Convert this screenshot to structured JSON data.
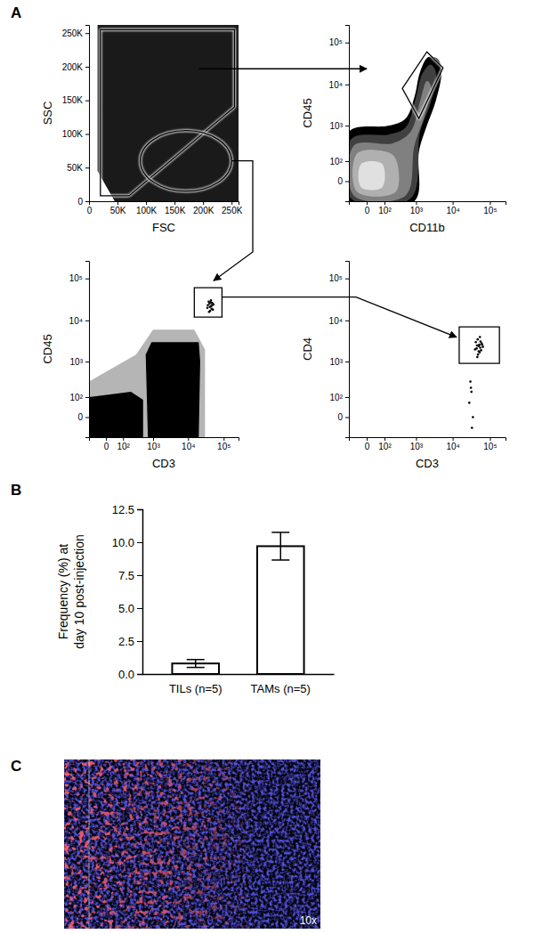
{
  "panel_labels": [
    "A",
    "B",
    "C"
  ],
  "chart_data": [
    {
      "type": "scatter",
      "x_label": "FSC",
      "y_label": "SSC",
      "xlim": [
        0,
        262144
      ],
      "ylim": [
        0,
        262144
      ],
      "xticks": [
        0,
        {
          "value": 50000,
          "label": "50K"
        },
        {
          "value": 100000,
          "label": "100K"
        },
        {
          "value": 150000,
          "label": "150K"
        },
        {
          "value": 200000,
          "label": "200K"
        },
        {
          "value": 250000,
          "label": "250K"
        }
      ],
      "yticks": [
        0,
        {
          "value": 50000,
          "label": "50K"
        },
        {
          "value": 100000,
          "label": "100K"
        },
        {
          "value": 150000,
          "label": "150K"
        },
        {
          "value": 200000,
          "label": "200K"
        },
        {
          "value": 250000,
          "label": "250K"
        }
      ],
      "regions": [
        {
          "color": "#1a1a1a",
          "x": [
            15000,
            262144,
            262144,
            45000,
            15000
          ],
          "y": [
            262144,
            262144,
            0,
            0,
            45000
          ]
        }
      ],
      "gates": [
        {
          "x": [
            20000,
            255000,
            255000,
            70000,
            20000
          ],
          "y": [
            255000,
            255000,
            140000,
            8000,
            8000
          ]
        }
      ],
      "ellipse_gates": [
        {
          "center_x": 170000,
          "center_y": 60000,
          "radius_x": 80000,
          "radius_y": 45000
        }
      ]
    },
    {
      "type": "contour",
      "x_label": "CD11b",
      "y_label": "CD45",
      "log": true,
      "xlim": [
        -100,
        262144
      ],
      "ylim": [
        -100,
        262144
      ],
      "xticks": [
        0,
        {
          "value": 100,
          "label": "10²"
        },
        {
          "value": 1000,
          "label": "10³"
        },
        {
          "value": 10000,
          "label": "10⁴"
        },
        {
          "value": 100000,
          "label": "10⁵"
        }
      ],
      "yticks": [
        0,
        {
          "value": 100,
          "label": "10²"
        },
        {
          "value": 1000,
          "label": "10³"
        },
        {
          "value": 10000,
          "label": "10⁴"
        },
        {
          "value": 100000,
          "label": "10⁵"
        }
      ],
      "regions": [
        {
          "color": "#000000",
          "x": [
            -100,
            -100,
            150,
            500,
            900,
            1300,
            2200,
            4000,
            5000,
            3500,
            2000,
            1200,
            900
          ],
          "y": [
            -100,
            700,
            1000,
            1500,
            5000,
            20000,
            45000,
            40000,
            20000,
            4000,
            1000,
            200,
            -100
          ]
        },
        {
          "color": "#404040",
          "x": [
            -80,
            -80,
            150,
            500,
            1000,
            1500,
            2500,
            3500,
            2500,
            1300,
            700
          ],
          "y": [
            -80,
            450,
            600,
            900,
            5000,
            18000,
            30000,
            20000,
            3500,
            700,
            -80
          ]
        },
        {
          "color": "#808080",
          "x": [
            -60,
            -60,
            200,
            700,
            1300,
            2000,
            2600,
            1800,
            900,
            500
          ],
          "y": [
            -60,
            300,
            350,
            700,
            4000,
            12000,
            9000,
            2000,
            300,
            -60
          ]
        },
        {
          "color": "#b0b0b0",
          "x": [
            -40,
            -40,
            120,
            250,
            250
          ],
          "y": [
            -40,
            180,
            200,
            120,
            -40
          ]
        },
        {
          "color": "#e0e0e0",
          "x": [
            -20,
            -20,
            80,
            80
          ],
          "y": [
            -20,
            80,
            80,
            -20
          ]
        }
      ],
      "gates": [
        {
          "x": [
            400,
            2000,
            5500,
            1200
          ],
          "y": [
            8000,
            60000,
            25000,
            1500
          ]
        }
      ]
    },
    {
      "type": "scatter",
      "x_label": "CD3",
      "y_label": "CD45",
      "log": true,
      "xlim": [
        -100,
        262144
      ],
      "ylim": [
        -100,
        262144
      ],
      "xticks": [
        0,
        {
          "value": 100,
          "label": "10²"
        },
        {
          "value": 1000,
          "label": "10³"
        },
        {
          "value": 10000,
          "label": "10⁴"
        },
        {
          "value": 100000,
          "label": "10⁵"
        }
      ],
      "yticks": [
        0,
        {
          "value": 100,
          "label": "10²"
        },
        {
          "value": 1000,
          "label": "10³"
        },
        {
          "value": 10000,
          "label": "10⁴"
        },
        {
          "value": 100000,
          "label": "10⁵"
        }
      ],
      "regions": [
        {
          "color": "#b5b5b5",
          "x": [
            -100,
            -100,
            300,
            1000,
            15000,
            30000,
            30000
          ],
          "y": [
            -100,
            300,
            1500,
            6000,
            6000,
            2000,
            -100
          ]
        },
        {
          "color": "#000000",
          "x": [
            700,
            600,
            900,
            20000,
            22000,
            20000
          ],
          "y": [
            -100,
            1500,
            3000,
            3000,
            1000,
            -100
          ]
        },
        {
          "color": "#000000",
          "x": [
            -100,
            -100,
            200,
            500,
            500
          ],
          "y": [
            -100,
            100,
            150,
            80,
            -100
          ]
        }
      ],
      "gates": [
        {
          "x": [
            15000,
            90000,
            90000,
            15000
          ],
          "y": [
            12000,
            12000,
            60000,
            60000
          ]
        }
      ],
      "points": {
        "x": [
          35000,
          40000,
          45000,
          50000,
          38000,
          42000,
          48000,
          44000,
          36000,
          52000,
          41000,
          46000,
          39000,
          43000,
          47000
        ],
        "y": [
          20000,
          25000,
          22000,
          18000,
          28000,
          17000,
          26000,
          30000,
          23000,
          24000,
          21000,
          19000,
          16000,
          27000,
          23000
        ]
      }
    },
    {
      "type": "scatter",
      "x_label": "CD3",
      "y_label": "CD4",
      "log": true,
      "xlim": [
        -100,
        262144
      ],
      "ylim": [
        -100,
        262144
      ],
      "xticks": [
        0,
        {
          "value": 100,
          "label": "10²"
        },
        {
          "value": 1000,
          "label": "10³"
        },
        {
          "value": 10000,
          "label": "10⁴"
        },
        {
          "value": 100000,
          "label": "10⁵"
        }
      ],
      "yticks": [
        0,
        {
          "value": 100,
          "label": "10²"
        },
        {
          "value": 1000,
          "label": "10³"
        },
        {
          "value": 10000,
          "label": "10⁴"
        },
        {
          "value": 100000,
          "label": "10⁵"
        }
      ],
      "gates": [
        {
          "x": [
            15000,
            180000,
            180000,
            15000
          ],
          "y": [
            900,
            900,
            7000,
            7000
          ]
        }
      ],
      "points": {
        "x": [
          40000,
          45000,
          50000,
          55000,
          60000,
          42000,
          48000,
          52000,
          58000,
          65000,
          47000,
          53000,
          44000,
          62000,
          56000,
          50000,
          46000,
          54000,
          30000,
          32000,
          28000,
          35000,
          33000,
          31000
        ],
        "y": [
          2000,
          2500,
          1800,
          2200,
          2800,
          3000,
          1500,
          2600,
          1900,
          2300,
          3500,
          1700,
          2100,
          2600,
          3100,
          2400,
          1300,
          4000,
          300,
          150,
          60,
          0,
          -40,
          200
        ]
      }
    },
    {
      "type": "bar",
      "categories": [
        "TILs (n=5)",
        "TAMs (n=5)"
      ],
      "values": [
        0.8,
        9.7
      ],
      "errors": [
        0.3,
        1.05
      ],
      "y_label": [
        "Frequency (%) at",
        "day 10 post-injection"
      ],
      "color": "#ffffff",
      "ylim": [
        0,
        12.5
      ],
      "yticks": [
        {
          "value": 0,
          "label": "0.0"
        },
        2.5,
        {
          "value": 5,
          "label": "5.0"
        },
        7.5,
        {
          "value": 10,
          "label": "10.0"
        },
        12.5
      ]
    }
  ],
  "image_panel": {
    "label": "10x"
  }
}
